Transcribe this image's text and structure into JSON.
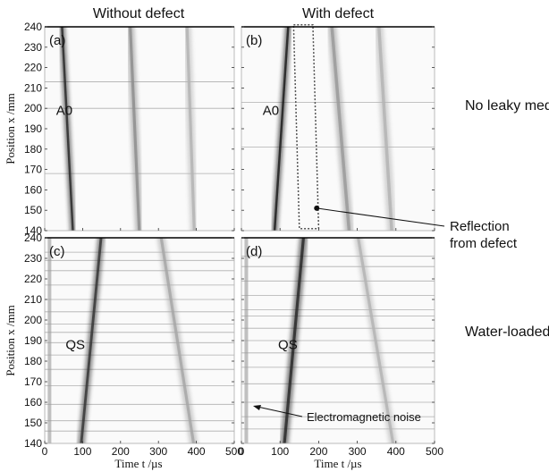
{
  "column_titles": [
    "Without defect",
    "With defect"
  ],
  "row_labels": [
    "No leaky media",
    "Water-loaded"
  ],
  "y_axis_label": "Position x /mm",
  "x_axis_label": "Time t /µs",
  "annotations": {
    "reflection": [
      "Reflection",
      "from defect"
    ],
    "em_noise": "Electromagnetic noise"
  },
  "colors": {
    "background": "#ffffff",
    "wave": "#2a2a2a",
    "frame": "#000000",
    "dotted_box": "#555555"
  },
  "chart_data": [
    {
      "type": "heatmap",
      "panel": "(a)",
      "mode_label": "A0",
      "xlim": [
        0,
        500
      ],
      "ylim": [
        140,
        240
      ],
      "x_ticks": [
        0,
        100,
        200,
        300,
        400,
        500
      ],
      "y_ticks": [
        140,
        150,
        160,
        170,
        180,
        190,
        200,
        210,
        220,
        230,
        240
      ],
      "wavefronts": [
        {
          "t_at_140": 75,
          "t_at_240": 45,
          "width": 7,
          "intensity": 0.85
        },
        {
          "t_at_140": 250,
          "t_at_240": 225,
          "width": 9,
          "intensity": 0.45
        },
        {
          "t_at_140": 395,
          "t_at_240": 375,
          "width": 9,
          "intensity": 0.3
        }
      ],
      "streak_rows": [
        168,
        200,
        213
      ],
      "label_pos": [
        30,
        199
      ]
    },
    {
      "type": "heatmap",
      "panel": "(b)",
      "mode_label": "A0",
      "xlim": [
        0,
        500
      ],
      "ylim": [
        140,
        240
      ],
      "x_ticks": [
        0,
        100,
        200,
        300,
        400,
        500
      ],
      "y_ticks": [
        140,
        150,
        160,
        170,
        180,
        190,
        200,
        210,
        220,
        230,
        240
      ],
      "wavefronts": [
        {
          "t_at_140": 85,
          "t_at_240": 122,
          "width": 7,
          "intensity": 0.9
        },
        {
          "t_at_140": 280,
          "t_at_240": 233,
          "width": 10,
          "intensity": 0.4
        },
        {
          "t_at_140": 390,
          "t_at_240": 355,
          "width": 10,
          "intensity": 0.3
        }
      ],
      "streak_rows": [
        181,
        203
      ],
      "label_pos": [
        55,
        199
      ],
      "highlight_box": [
        [
          135,
          241
        ],
        [
          185,
          241
        ],
        [
          200,
          141
        ],
        [
          150,
          141
        ]
      ],
      "reflection_point": [
        195,
        151
      ]
    },
    {
      "type": "heatmap",
      "panel": "(c)",
      "mode_label": "QS",
      "xlim": [
        0,
        500
      ],
      "ylim": [
        140,
        240
      ],
      "x_ticks": [
        0,
        100,
        200,
        300,
        400,
        500
      ],
      "y_ticks": [
        140,
        150,
        160,
        170,
        180,
        190,
        200,
        210,
        220,
        230,
        240
      ],
      "wavefronts": [
        {
          "t_at_140": 95,
          "t_at_240": 150,
          "width": 8,
          "intensity": 0.8
        },
        {
          "t_at_140": 395,
          "t_at_240": 305,
          "width": 9,
          "intensity": 0.35
        }
      ],
      "streak_rows": [
        146,
        151,
        159,
        168,
        176,
        183,
        189,
        194,
        198,
        204,
        210,
        217,
        224,
        229,
        233
      ],
      "label_pos": [
        55,
        188
      ]
    },
    {
      "type": "heatmap",
      "panel": "(d)",
      "mode_label": "QS",
      "xlim": [
        0,
        500
      ],
      "ylim": [
        140,
        240
      ],
      "x_ticks": [
        0,
        100,
        200,
        300,
        400,
        500
      ],
      "y_ticks": [
        140,
        150,
        160,
        170,
        180,
        190,
        200,
        210,
        220,
        230,
        240
      ],
      "wavefronts": [
        {
          "t_at_140": 110,
          "t_at_240": 162,
          "width": 9,
          "intensity": 0.85
        },
        {
          "t_at_140": 395,
          "t_at_240": 300,
          "width": 9,
          "intensity": 0.3
        }
      ],
      "streak_rows": [
        147,
        153,
        160,
        169,
        177,
        184,
        190,
        196,
        202,
        205,
        212,
        219,
        226,
        231
      ],
      "label_pos": [
        95,
        188
      ]
    }
  ]
}
